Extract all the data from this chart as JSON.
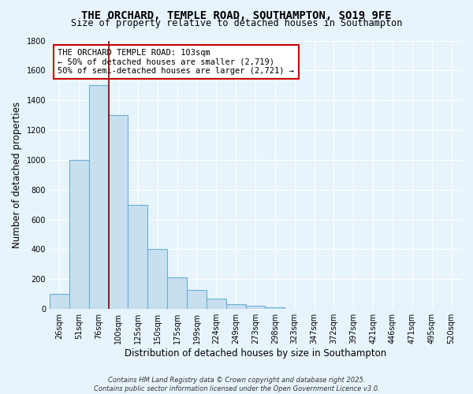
{
  "title": "THE ORCHARD, TEMPLE ROAD, SOUTHAMPTON, SO19 9FE",
  "subtitle": "Size of property relative to detached houses in Southampton",
  "xlabel": "Distribution of detached houses by size in Southampton",
  "ylabel": "Number of detached properties",
  "bar_values": [
    100,
    1000,
    1500,
    1300,
    700,
    400,
    210,
    130,
    70,
    35,
    20,
    10,
    0,
    0,
    0,
    0,
    0,
    0,
    0,
    0,
    0
  ],
  "bar_labels": [
    "26sqm",
    "51sqm",
    "76sqm",
    "100sqm",
    "125sqm",
    "150sqm",
    "175sqm",
    "199sqm",
    "224sqm",
    "249sqm",
    "273sqm",
    "298sqm",
    "323sqm",
    "347sqm",
    "372sqm",
    "397sqm",
    "421sqm",
    "446sqm",
    "471sqm",
    "495sqm",
    "520sqm"
  ],
  "bar_color": "#c8dff0",
  "bar_edge_color": "#6aafd6",
  "ylim": [
    0,
    1800
  ],
  "yticks": [
    0,
    200,
    400,
    600,
    800,
    1000,
    1200,
    1400,
    1600,
    1800
  ],
  "vline_x": 3.0,
  "vline_color": "#8b0000",
  "annotation_line1": "THE ORCHARD TEMPLE ROAD: 103sqm",
  "annotation_line2": "← 50% of detached houses are smaller (2,719)",
  "annotation_line3": "50% of semi-detached houses are larger (2,721) →",
  "annotation_box_facecolor": "#ffffff",
  "annotation_box_edgecolor": "#cc0000",
  "footer_line1": "Contains HM Land Registry data © Crown copyright and database right 2025.",
  "footer_line2": "Contains public sector information licensed under the Open Government Licence v3.0.",
  "background_color": "#e8f4fc",
  "grid_color": "#ffffff",
  "title_fontsize": 10,
  "subtitle_fontsize": 8.5,
  "tick_fontsize": 7,
  "label_fontsize": 8.5,
  "annotation_fontsize": 7.5,
  "footer_fontsize": 6
}
